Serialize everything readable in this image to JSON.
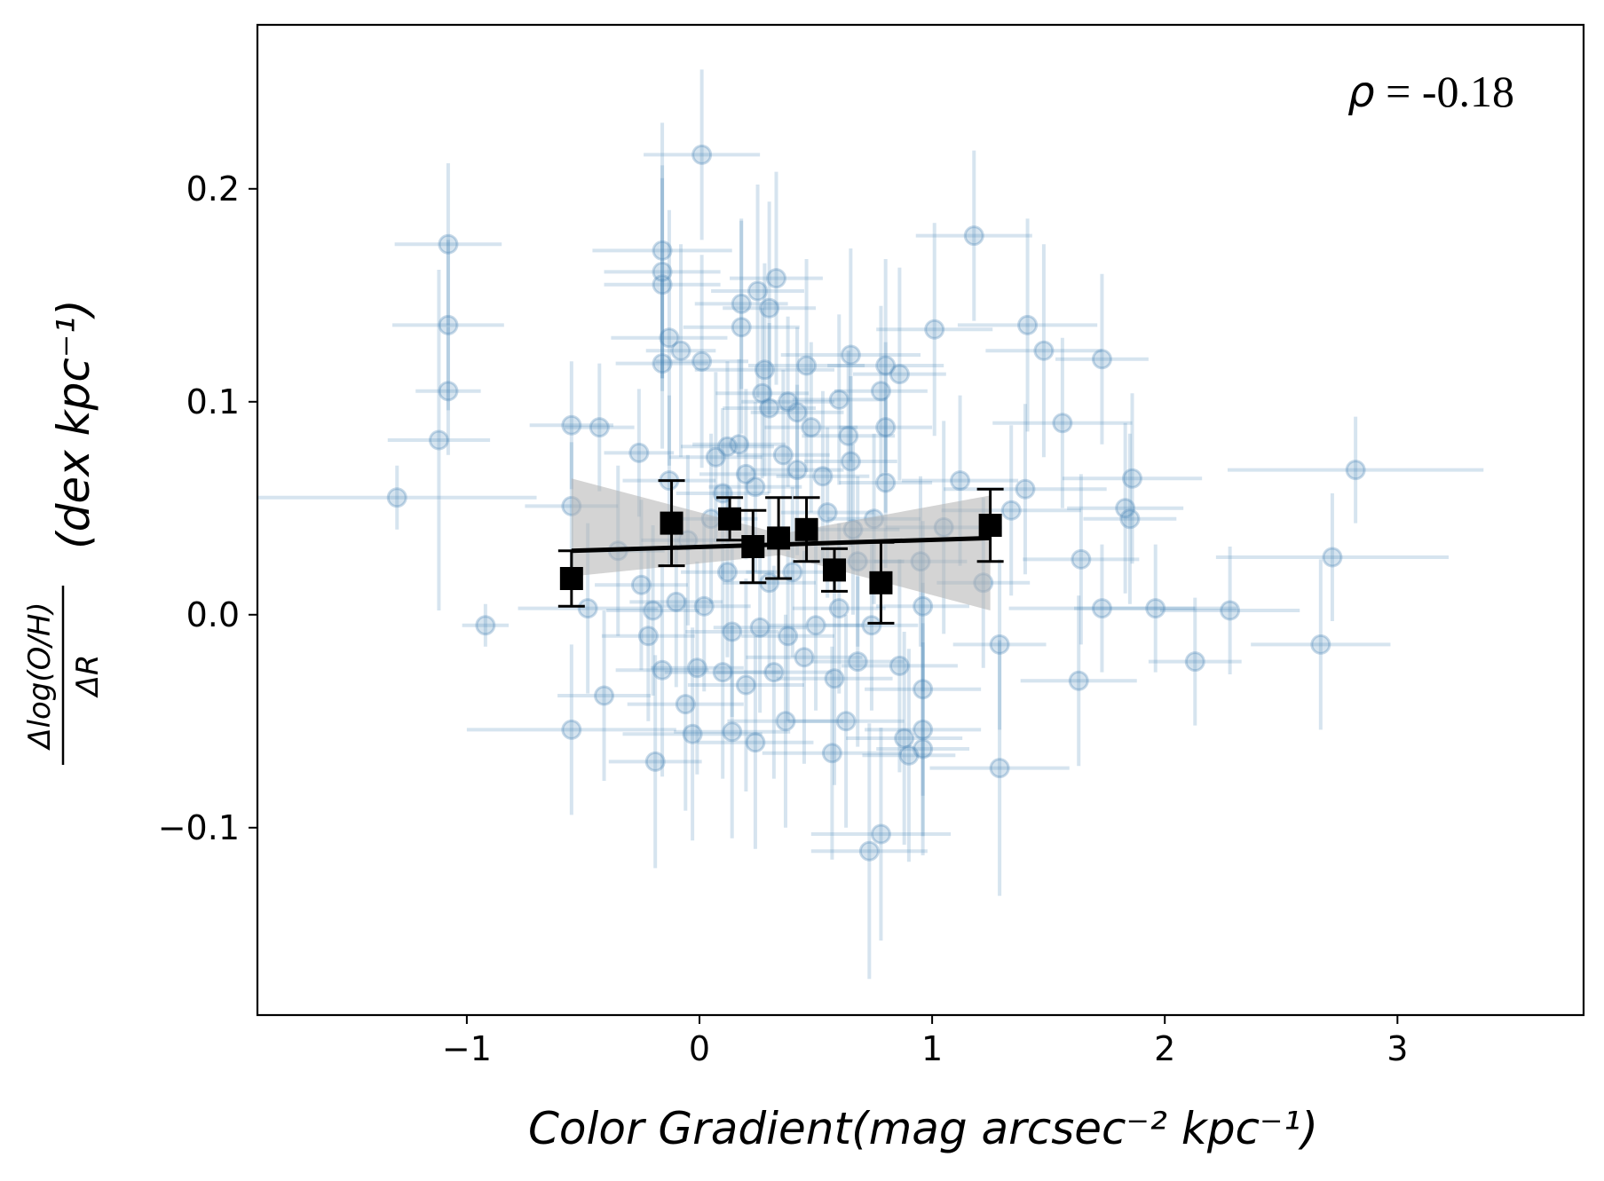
{
  "chart_data": {
    "type": "scatter",
    "xlabel": "Color Gradient(mag arcsec⁻² kpc⁻¹)",
    "ylabel_fraction_top": "Δlog(O/H)",
    "ylabel_fraction_bottom": "ΔR",
    "ylabel_units": "(dex kpc⁻¹)",
    "annotation": {
      "symbol": "ρ",
      "text": " = -0.18"
    },
    "xlim": [
      -1.9,
      3.8
    ],
    "ylim": [
      -0.188,
      0.277
    ],
    "xticks": [
      -1,
      0,
      1,
      2,
      3
    ],
    "xtick_labels": [
      "−1",
      "0",
      "1",
      "2",
      "3"
    ],
    "yticks": [
      -0.1,
      0.0,
      0.1,
      0.2
    ],
    "ytick_labels": [
      "−0.1",
      "0.0",
      "0.1",
      "0.2"
    ],
    "grid": false,
    "colors": {
      "points": "#4682b4",
      "binned": "#000000",
      "fit_band": "#b0b0b0"
    },
    "fit_line": {
      "x": [
        -0.55,
        1.25
      ],
      "y": [
        0.03,
        0.036
      ]
    },
    "fit_band": {
      "x": [
        -0.55,
        0.35,
        1.25
      ],
      "upper": [
        0.064,
        0.038,
        0.056
      ],
      "lower": [
        0.018,
        0.028,
        0.002
      ]
    },
    "binned": [
      {
        "x": -0.55,
        "y": 0.017,
        "yerr": 0.013
      },
      {
        "x": -0.12,
        "y": 0.043,
        "yerr": 0.02
      },
      {
        "x": 0.13,
        "y": 0.045,
        "yerr": 0.01
      },
      {
        "x": 0.23,
        "y": 0.032,
        "yerr": 0.017
      },
      {
        "x": 0.34,
        "y": 0.036,
        "yerr": 0.019
      },
      {
        "x": 0.46,
        "y": 0.04,
        "yerr": 0.015
      },
      {
        "x": 0.58,
        "y": 0.021,
        "yerr": 0.01
      },
      {
        "x": 0.78,
        "y": 0.015,
        "yerr": 0.019
      },
      {
        "x": 1.25,
        "y": 0.042,
        "yerr": 0.017
      }
    ],
    "points": [
      {
        "x": 0.01,
        "y": 0.216,
        "xerr": 0.25,
        "yerr": 0.04
      },
      {
        "x": -1.08,
        "y": 0.174,
        "xerr": 0.23,
        "yerr": 0.038
      },
      {
        "x": 1.18,
        "y": 0.178,
        "xerr": 0.25,
        "yerr": 0.04
      },
      {
        "x": -1.08,
        "y": 0.136,
        "xerr": 0.24,
        "yerr": 0.04
      },
      {
        "x": -1.08,
        "y": 0.105,
        "xerr": 0.14,
        "yerr": 0.03
      },
      {
        "x": -1.12,
        "y": 0.082,
        "xerr": 0.22,
        "yerr": 0.08
      },
      {
        "x": -1.3,
        "y": 0.055,
        "xerr": 0.6,
        "yerr": 0.015
      },
      {
        "x": -0.92,
        "y": -0.005,
        "xerr": 0.1,
        "yerr": 0.01
      },
      {
        "x": -0.55,
        "y": 0.089,
        "xerr": 0.18,
        "yerr": 0.03
      },
      {
        "x": -0.43,
        "y": 0.088,
        "xerr": 0.15,
        "yerr": 0.03
      },
      {
        "x": -0.55,
        "y": 0.051,
        "xerr": 0.2,
        "yerr": 0.03
      },
      {
        "x": -0.48,
        "y": 0.003,
        "xerr": 0.3,
        "yerr": 0.04
      },
      {
        "x": -0.41,
        "y": -0.038,
        "xerr": 0.2,
        "yerr": 0.04
      },
      {
        "x": -0.55,
        "y": -0.054,
        "xerr": 0.45,
        "yerr": 0.04
      },
      {
        "x": -0.19,
        "y": -0.069,
        "xerr": 0.2,
        "yerr": 0.05
      },
      {
        "x": -0.16,
        "y": 0.171,
        "xerr": 0.3,
        "yerr": 0.06
      },
      {
        "x": -0.16,
        "y": 0.161,
        "xerr": 0.25,
        "yerr": 0.05
      },
      {
        "x": -0.16,
        "y": 0.155,
        "xerr": 0.25,
        "yerr": 0.05
      },
      {
        "x": -0.13,
        "y": 0.13,
        "xerr": 0.25,
        "yerr": 0.06
      },
      {
        "x": -0.16,
        "y": 0.118,
        "xerr": 0.2,
        "yerr": 0.04
      },
      {
        "x": -0.08,
        "y": 0.124,
        "xerr": 0.15,
        "yerr": 0.05
      },
      {
        "x": 0.01,
        "y": 0.119,
        "xerr": 0.2,
        "yerr": 0.05
      },
      {
        "x": 0.18,
        "y": 0.146,
        "xerr": 0.2,
        "yerr": 0.04
      },
      {
        "x": 0.25,
        "y": 0.152,
        "xerr": 0.2,
        "yerr": 0.05
      },
      {
        "x": 0.33,
        "y": 0.158,
        "xerr": 0.2,
        "yerr": 0.05
      },
      {
        "x": 0.3,
        "y": 0.144,
        "xerr": 0.2,
        "yerr": 0.05
      },
      {
        "x": 0.18,
        "y": 0.135,
        "xerr": 0.25,
        "yerr": 0.05
      },
      {
        "x": 0.28,
        "y": 0.115,
        "xerr": 0.3,
        "yerr": 0.05
      },
      {
        "x": 0.46,
        "y": 0.117,
        "xerr": 0.25,
        "yerr": 0.05
      },
      {
        "x": 0.65,
        "y": 0.122,
        "xerr": 0.3,
        "yerr": 0.05
      },
      {
        "x": 0.8,
        "y": 0.117,
        "xerr": 0.25,
        "yerr": 0.05
      },
      {
        "x": 0.86,
        "y": 0.113,
        "xerr": 0.2,
        "yerr": 0.05
      },
      {
        "x": 1.01,
        "y": 0.134,
        "xerr": 0.25,
        "yerr": 0.05
      },
      {
        "x": 1.41,
        "y": 0.136,
        "xerr": 0.3,
        "yerr": 0.05
      },
      {
        "x": 1.48,
        "y": 0.124,
        "xerr": 0.25,
        "yerr": 0.05
      },
      {
        "x": 1.73,
        "y": 0.12,
        "xerr": 0.2,
        "yerr": 0.04
      },
      {
        "x": 1.56,
        "y": 0.09,
        "xerr": 0.3,
        "yerr": 0.04
      },
      {
        "x": 1.4,
        "y": 0.059,
        "xerr": 0.35,
        "yerr": 0.04
      },
      {
        "x": 1.34,
        "y": 0.049,
        "xerr": 0.3,
        "yerr": 0.04
      },
      {
        "x": 1.86,
        "y": 0.064,
        "xerr": 0.3,
        "yerr": 0.04
      },
      {
        "x": 1.83,
        "y": 0.05,
        "xerr": 0.25,
        "yerr": 0.04
      },
      {
        "x": 1.85,
        "y": 0.045,
        "xerr": 0.2,
        "yerr": 0.04
      },
      {
        "x": 2.82,
        "y": 0.068,
        "xerr": 0.55,
        "yerr": 0.025
      },
      {
        "x": 2.72,
        "y": 0.027,
        "xerr": 0.5,
        "yerr": 0.03
      },
      {
        "x": 2.67,
        "y": -0.014,
        "xerr": 0.3,
        "yerr": 0.04
      },
      {
        "x": 1.64,
        "y": 0.026,
        "xerr": 0.25,
        "yerr": 0.04
      },
      {
        "x": 1.73,
        "y": 0.003,
        "xerr": 0.4,
        "yerr": 0.03
      },
      {
        "x": 1.96,
        "y": 0.003,
        "xerr": 0.35,
        "yerr": 0.03
      },
      {
        "x": 2.28,
        "y": 0.002,
        "xerr": 0.3,
        "yerr": 0.03
      },
      {
        "x": 2.13,
        "y": -0.022,
        "xerr": 0.2,
        "yerr": 0.03
      },
      {
        "x": 1.63,
        "y": -0.031,
        "xerr": 0.25,
        "yerr": 0.04
      },
      {
        "x": 1.29,
        "y": -0.014,
        "xerr": 0.2,
        "yerr": 0.04
      },
      {
        "x": 1.29,
        "y": -0.072,
        "xerr": 0.3,
        "yerr": 0.06
      },
      {
        "x": 1.22,
        "y": 0.015,
        "xerr": 0.2,
        "yerr": 0.04
      },
      {
        "x": 1.12,
        "y": 0.063,
        "xerr": 0.25,
        "yerr": 0.04
      },
      {
        "x": 1.05,
        "y": 0.041,
        "xerr": 0.25,
        "yerr": 0.05
      },
      {
        "x": 0.96,
        "y": 0.004,
        "xerr": 0.2,
        "yerr": 0.04
      },
      {
        "x": 0.96,
        "y": -0.035,
        "xerr": 0.25,
        "yerr": 0.05
      },
      {
        "x": 0.96,
        "y": -0.054,
        "xerr": 0.25,
        "yerr": 0.05
      },
      {
        "x": 0.96,
        "y": -0.063,
        "xerr": 0.2,
        "yerr": 0.05
      },
      {
        "x": 0.86,
        "y": -0.024,
        "xerr": 0.25,
        "yerr": 0.05
      },
      {
        "x": 0.88,
        "y": -0.058,
        "xerr": 0.25,
        "yerr": 0.05
      },
      {
        "x": 0.9,
        "y": -0.066,
        "xerr": 0.2,
        "yerr": 0.05
      },
      {
        "x": 0.78,
        "y": -0.103,
        "xerr": 0.3,
        "yerr": 0.05
      },
      {
        "x": 0.73,
        "y": -0.111,
        "xerr": 0.25,
        "yerr": 0.06
      },
      {
        "x": 0.57,
        "y": -0.065,
        "xerr": 0.3,
        "yerr": 0.05
      },
      {
        "x": 0.63,
        "y": -0.05,
        "xerr": 0.25,
        "yerr": 0.05
      },
      {
        "x": 0.37,
        "y": -0.05,
        "xerr": 0.25,
        "yerr": 0.05
      },
      {
        "x": 0.24,
        "y": -0.06,
        "xerr": 0.25,
        "yerr": 0.05
      },
      {
        "x": 0.14,
        "y": -0.055,
        "xerr": 0.25,
        "yerr": 0.05
      },
      {
        "x": -0.03,
        "y": -0.056,
        "xerr": 0.3,
        "yerr": 0.05
      },
      {
        "x": -0.06,
        "y": -0.042,
        "xerr": 0.25,
        "yerr": 0.05
      },
      {
        "x": -0.16,
        "y": -0.026,
        "xerr": 0.2,
        "yerr": 0.05
      },
      {
        "x": -0.01,
        "y": -0.025,
        "xerr": 0.2,
        "yerr": 0.05
      },
      {
        "x": 0.1,
        "y": -0.027,
        "xerr": 0.25,
        "yerr": 0.05
      },
      {
        "x": 0.2,
        "y": -0.033,
        "xerr": 0.25,
        "yerr": 0.05
      },
      {
        "x": 0.32,
        "y": -0.027,
        "xerr": 0.25,
        "yerr": 0.05
      },
      {
        "x": 0.45,
        "y": -0.02,
        "xerr": 0.25,
        "yerr": 0.05
      },
      {
        "x": 0.58,
        "y": -0.03,
        "xerr": 0.25,
        "yerr": 0.05
      },
      {
        "x": 0.68,
        "y": -0.022,
        "xerr": 0.2,
        "yerr": 0.04
      },
      {
        "x": 0.74,
        "y": -0.005,
        "xerr": 0.2,
        "yerr": 0.04
      },
      {
        "x": 0.6,
        "y": 0.003,
        "xerr": 0.2,
        "yerr": 0.04
      },
      {
        "x": 0.5,
        "y": -0.005,
        "xerr": 0.2,
        "yerr": 0.04
      },
      {
        "x": 0.38,
        "y": -0.01,
        "xerr": 0.2,
        "yerr": 0.04
      },
      {
        "x": 0.26,
        "y": -0.006,
        "xerr": 0.2,
        "yerr": 0.04
      },
      {
        "x": 0.14,
        "y": -0.008,
        "xerr": 0.2,
        "yerr": 0.04
      },
      {
        "x": 0.02,
        "y": 0.004,
        "xerr": 0.2,
        "yerr": 0.04
      },
      {
        "x": -0.1,
        "y": 0.006,
        "xerr": 0.2,
        "yerr": 0.04
      },
      {
        "x": -0.2,
        "y": 0.002,
        "xerr": 0.2,
        "yerr": 0.04
      },
      {
        "x": -0.25,
        "y": 0.014,
        "xerr": 0.2,
        "yerr": 0.04
      },
      {
        "x": -0.22,
        "y": -0.01,
        "xerr": 0.2,
        "yerr": 0.04
      },
      {
        "x": -0.26,
        "y": 0.076,
        "xerr": 0.15,
        "yerr": 0.03
      },
      {
        "x": -0.35,
        "y": 0.03,
        "xerr": 0.2,
        "yerr": 0.04
      },
      {
        "x": -0.13,
        "y": 0.063,
        "xerr": 0.2,
        "yerr": 0.04
      },
      {
        "x": 0.07,
        "y": 0.074,
        "xerr": 0.2,
        "yerr": 0.04
      },
      {
        "x": 0.12,
        "y": 0.079,
        "xerr": 0.2,
        "yerr": 0.04
      },
      {
        "x": 0.17,
        "y": 0.08,
        "xerr": 0.2,
        "yerr": 0.04
      },
      {
        "x": 0.2,
        "y": 0.066,
        "xerr": 0.2,
        "yerr": 0.04
      },
      {
        "x": 0.1,
        "y": 0.057,
        "xerr": 0.2,
        "yerr": 0.04
      },
      {
        "x": 0.27,
        "y": 0.104,
        "xerr": 0.2,
        "yerr": 0.04
      },
      {
        "x": 0.3,
        "y": 0.097,
        "xerr": 0.2,
        "yerr": 0.04
      },
      {
        "x": 0.38,
        "y": 0.1,
        "xerr": 0.2,
        "yerr": 0.04
      },
      {
        "x": 0.42,
        "y": 0.095,
        "xerr": 0.2,
        "yerr": 0.04
      },
      {
        "x": 0.48,
        "y": 0.088,
        "xerr": 0.2,
        "yerr": 0.04
      },
      {
        "x": 0.6,
        "y": 0.101,
        "xerr": 0.2,
        "yerr": 0.04
      },
      {
        "x": 0.64,
        "y": 0.084,
        "xerr": 0.2,
        "yerr": 0.04
      },
      {
        "x": 0.65,
        "y": 0.072,
        "xerr": 0.2,
        "yerr": 0.04
      },
      {
        "x": 0.53,
        "y": 0.065,
        "xerr": 0.2,
        "yerr": 0.04
      },
      {
        "x": 0.42,
        "y": 0.068,
        "xerr": 0.2,
        "yerr": 0.04
      },
      {
        "x": 0.36,
        "y": 0.075,
        "xerr": 0.2,
        "yerr": 0.04
      },
      {
        "x": 0.24,
        "y": 0.06,
        "xerr": 0.2,
        "yerr": 0.04
      },
      {
        "x": 0.78,
        "y": 0.105,
        "xerr": 0.2,
        "yerr": 0.04
      },
      {
        "x": 0.8,
        "y": 0.088,
        "xerr": 0.2,
        "yerr": 0.04
      },
      {
        "x": 0.8,
        "y": 0.062,
        "xerr": 0.2,
        "yerr": 0.04
      },
      {
        "x": 0.75,
        "y": 0.045,
        "xerr": 0.2,
        "yerr": 0.04
      },
      {
        "x": 0.66,
        "y": 0.04,
        "xerr": 0.2,
        "yerr": 0.04
      },
      {
        "x": 0.55,
        "y": 0.048,
        "xerr": 0.2,
        "yerr": 0.04
      },
      {
        "x": 0.05,
        "y": 0.045,
        "xerr": 0.2,
        "yerr": 0.04
      },
      {
        "x": -0.05,
        "y": 0.035,
        "xerr": 0.2,
        "yerr": 0.04
      },
      {
        "x": 0.4,
        "y": 0.02,
        "xerr": 0.2,
        "yerr": 0.04
      },
      {
        "x": 0.3,
        "y": 0.015,
        "xerr": 0.2,
        "yerr": 0.04
      },
      {
        "x": 0.12,
        "y": 0.02,
        "xerr": 0.2,
        "yerr": 0.04
      },
      {
        "x": 0.68,
        "y": 0.025,
        "xerr": 0.2,
        "yerr": 0.04
      },
      {
        "x": 0.95,
        "y": 0.025,
        "xerr": 0.2,
        "yerr": 0.04
      }
    ]
  }
}
